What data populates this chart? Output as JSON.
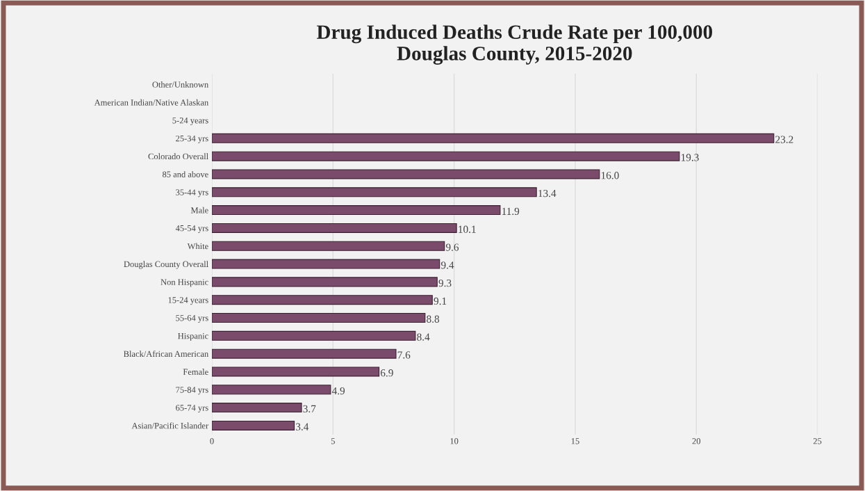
{
  "chart_data": {
    "type": "bar",
    "orientation": "horizontal",
    "title": "Drug Induced Deaths Crude Rate per 100,000\nDouglas County, 2015-2020",
    "categories": [
      "Other/Unknown",
      "American Indian/Native Alaskan",
      "5-24 years",
      "25-34 yrs",
      "Colorado Overall",
      "85 and above",
      "35-44 yrs",
      "Male",
      "45-54 yrs",
      "White",
      "Douglas County Overall",
      "Non Hispanic",
      "15-24 years",
      "55-64 yrs",
      "Hispanic",
      "Black/African American",
      "Female",
      "75-84 yrs",
      "65-74 yrs",
      "Asian/Pacific Islander"
    ],
    "values": [
      null,
      null,
      null,
      23.2,
      19.3,
      16.0,
      13.4,
      11.9,
      10.1,
      9.6,
      9.4,
      9.3,
      9.1,
      8.8,
      8.4,
      7.6,
      6.9,
      4.9,
      3.7,
      3.4
    ],
    "value_labels": [
      null,
      null,
      null,
      "23.2",
      "19.3",
      "16.0",
      "13.4",
      "11.9",
      "10.1",
      "9.6",
      "9.4",
      "9.3",
      "9.1",
      "8.8",
      "8.4",
      "7.6",
      "6.9",
      "4.9",
      "3.7",
      "3.4"
    ],
    "color": "#7b4b6b",
    "xlim": [
      0,
      25
    ],
    "xticks": [
      0,
      5,
      10,
      15,
      20,
      25
    ],
    "grid": "x"
  }
}
